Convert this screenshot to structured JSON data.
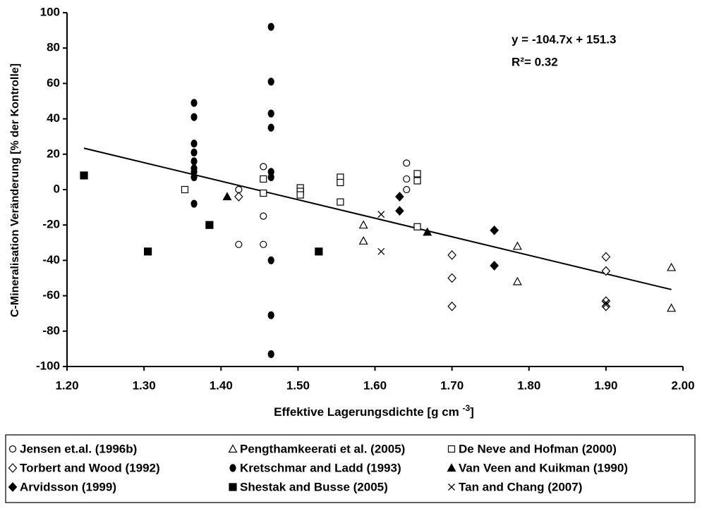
{
  "chart_data": {
    "type": "scatter",
    "y_label": "C-Mineralisation Veränderung [% der Kontrolle]",
    "x_label": "Effektive Lagerungsdichte  [g cm ",
    "x_label_sup": "-3",
    "x_label_end": "]",
    "equation": "y = -104.7x + 151.3",
    "r_squared": "R²= 0.32",
    "xlim": [
      1.2,
      2.0
    ],
    "xticks": [
      {
        "value": 1.2,
        "label": "1.20"
      },
      {
        "value": 1.3,
        "label": "1.30"
      },
      {
        "value": 1.4,
        "label": "1.40"
      },
      {
        "value": 1.5,
        "label": "1.50"
      },
      {
        "value": 1.6,
        "label": "1.60"
      },
      {
        "value": 1.7,
        "label": "1.70"
      },
      {
        "value": 1.8,
        "label": "1.80"
      },
      {
        "value": 1.9,
        "label": "1.90"
      },
      {
        "value": 2.0,
        "label": "2.00"
      }
    ],
    "ylim": [
      -100,
      100
    ],
    "yticks": [
      -100,
      -80,
      -60,
      -40,
      -20,
      0,
      20,
      40,
      60,
      80,
      100
    ],
    "trendline": {
      "x": [
        1.222,
        1.985
      ],
      "y": [
        23.4,
        -56.5
      ],
      "color": "#000000"
    },
    "series": [
      {
        "name": "Jensen et.al. (1996b)",
        "marker": "circle-open",
        "color": "#000000",
        "x": [
          1.423,
          1.423,
          1.455,
          1.455,
          1.455,
          1.641,
          1.641,
          1.641
        ],
        "values": [
          0,
          -31,
          13,
          -15,
          -31,
          15,
          6,
          0
        ]
      },
      {
        "name": "Pengthamkeerati et al. (2005)",
        "marker": "triangle-open",
        "color": "#000000",
        "x": [
          1.585,
          1.585,
          1.785,
          1.785,
          1.985,
          1.985
        ],
        "values": [
          -20,
          -29,
          -32,
          -52,
          -44,
          -67
        ]
      },
      {
        "name": "De Neve and Hofman (2000)",
        "marker": "square-open",
        "color": "#000000",
        "x": [
          1.353,
          1.455,
          1.455,
          1.503,
          1.503,
          1.503,
          1.555,
          1.555,
          1.555,
          1.655,
          1.655,
          1.655
        ],
        "values": [
          0,
          6,
          -2,
          1,
          -1,
          -3,
          7,
          4,
          -7,
          9,
          5,
          -21
        ]
      },
      {
        "name": "Torbert and Wood (1992)",
        "marker": "diamond-open",
        "color": "#000000",
        "x": [
          1.423,
          1.7,
          1.7,
          1.7,
          1.9,
          1.9,
          1.9,
          1.9
        ],
        "values": [
          -4,
          -37,
          -50,
          -66,
          -38,
          -46,
          -63,
          -66
        ]
      },
      {
        "name": "Kretschmar and Ladd (1993)",
        "marker": "circle-filled",
        "color": "#000000",
        "x": [
          1.365,
          1.365,
          1.365,
          1.365,
          1.365,
          1.365,
          1.365,
          1.365,
          1.365,
          1.465,
          1.465,
          1.465,
          1.465,
          1.465,
          1.465,
          1.465,
          1.465,
          1.465
        ],
        "values": [
          49,
          41,
          26,
          21,
          16,
          12,
          10,
          7,
          -8,
          92,
          61,
          43,
          35,
          10,
          7,
          -40,
          -71,
          -93
        ]
      },
      {
        "name": "Van Veen and Kuikman (1990)",
        "marker": "triangle-filled",
        "color": "#000000",
        "x": [
          1.408,
          1.668
        ],
        "values": [
          -4,
          -24
        ]
      },
      {
        "name": "Arvidsson (1999)",
        "marker": "diamond-filled",
        "color": "#000000",
        "x": [
          1.632,
          1.632,
          1.755,
          1.755
        ],
        "values": [
          -4,
          -12,
          -23,
          -43
        ]
      },
      {
        "name": "Shestak and Busse (2005)",
        "marker": "square-filled",
        "color": "#000000",
        "x": [
          1.222,
          1.305,
          1.385,
          1.527
        ],
        "values": [
          8,
          -35,
          -20,
          -35
        ]
      },
      {
        "name": "Tan and Chang (2007)",
        "marker": "cross",
        "color": "#000000",
        "x": [
          1.608,
          1.608,
          1.9,
          1.9
        ],
        "values": [
          -14,
          -35,
          -64,
          -65
        ]
      }
    ]
  }
}
